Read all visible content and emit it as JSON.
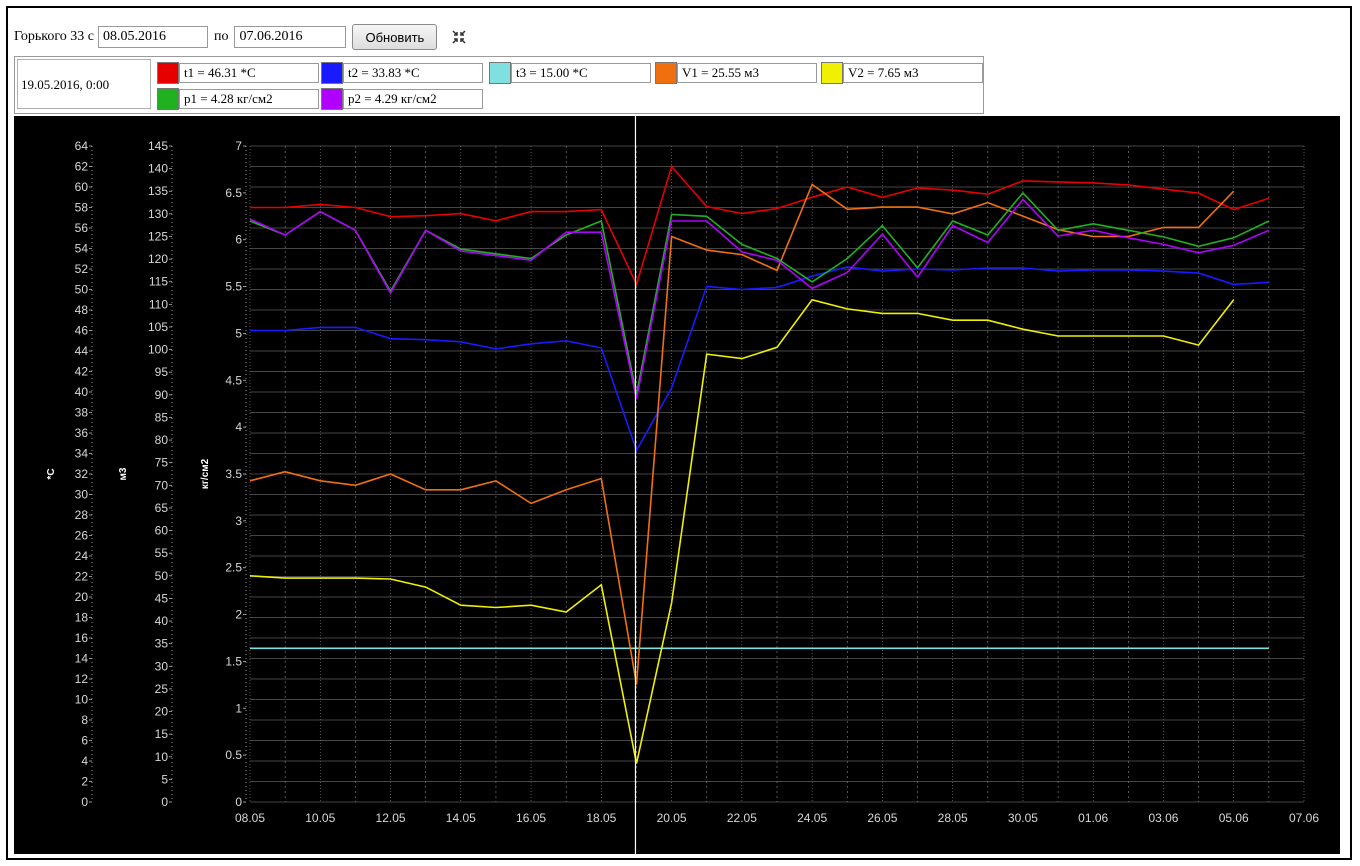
{
  "toolbar": {
    "object_label": "Горького 33 с",
    "date_from": "08.05.2016",
    "to_label": "по",
    "date_to": "07.06.2016",
    "refresh_label": "Обновить"
  },
  "legend": {
    "cursor_time": "19.05.2016, 0:00",
    "items": [
      {
        "label": "t1 = 46.31 *C",
        "color": "#e60000"
      },
      {
        "label": "t2 = 33.83 *C",
        "color": "#1a1aff"
      },
      {
        "label": "t3 = 15.00 *C",
        "color": "#80e0e0"
      },
      {
        "label": "V1 = 25.55 м3",
        "color": "#f07010"
      },
      {
        "label": "V2 = 7.65 м3",
        "color": "#f0f000"
      },
      {
        "label": "p1 = 4.28 кг/см2",
        "color": "#20b020"
      },
      {
        "label": "p2 = 4.29 кг/см2",
        "color": "#b000ff"
      }
    ]
  },
  "chart_data": {
    "type": "line",
    "x_tick_labels": [
      "08.05",
      "10.05",
      "12.05",
      "14.05",
      "16.05",
      "18.05",
      "20.05",
      "22.05",
      "24.05",
      "26.05",
      "28.05",
      "30.05",
      "01.06",
      "03.06",
      "05.06",
      "07.06"
    ],
    "cursor_label": "19.05",
    "axes": {
      "temperature": {
        "label": "*C",
        "min": 0,
        "max": 64,
        "step": 2
      },
      "volume": {
        "label": "м3",
        "min": 0,
        "max": 145,
        "step": 5
      },
      "pressure": {
        "label": "кг/см2",
        "min": 0,
        "max": 7,
        "step": 0.5
      }
    },
    "series": [
      {
        "name": "t1",
        "axis": "temperature",
        "color": "#e60000",
        "values": [
          58,
          58,
          58.3,
          58,
          57.1,
          57.2,
          57.4,
          56.7,
          57.6,
          57.6,
          57.8,
          50.5,
          62,
          58.1,
          57.4,
          57.9,
          59,
          60,
          59,
          59.9,
          59.7,
          59.3,
          60.6,
          60.5,
          60.4,
          60.2,
          59.8,
          59.4,
          57.8,
          58.9
        ]
      },
      {
        "name": "t2",
        "axis": "temperature",
        "color": "#1a1aff",
        "values": [
          46,
          46,
          46.3,
          46.3,
          45.2,
          45.1,
          44.9,
          44.2,
          44.7,
          45,
          44.3,
          34.3,
          40.4,
          50.3,
          50,
          50.2,
          51.3,
          52.2,
          51.8,
          52,
          51.9,
          52.1,
          52.1,
          51.8,
          51.9,
          51.9,
          51.8,
          51.6,
          50.5,
          50.7
        ]
      },
      {
        "name": "t3",
        "axis": "temperature",
        "color": "#80e0e0",
        "values": [
          15,
          15,
          15,
          15,
          15,
          15,
          15,
          15,
          15,
          15,
          15,
          15,
          15,
          15,
          15,
          15,
          15,
          15,
          15,
          15,
          15,
          15,
          15,
          15,
          15,
          15,
          15,
          15,
          15,
          15
        ]
      },
      {
        "name": "V1",
        "axis": "volume",
        "color": "#f07010",
        "values": [
          71,
          73,
          71,
          70,
          72.5,
          69,
          69,
          71,
          66,
          69,
          71.5,
          26,
          125,
          122,
          121,
          117.5,
          136.5,
          131,
          131.5,
          131.5,
          130,
          132.5,
          129.5,
          126.5,
          125,
          125,
          127,
          127,
          135
        ]
      },
      {
        "name": "V2",
        "axis": "volume",
        "color": "#f0f000",
        "values": [
          50,
          49.5,
          49.5,
          49.5,
          49.3,
          47.5,
          43.5,
          43,
          43.5,
          42,
          48,
          8.5,
          44,
          99,
          98,
          100.5,
          111,
          109,
          108,
          108,
          106.5,
          106.5,
          104.5,
          103,
          103,
          103,
          103,
          101,
          111
        ]
      },
      {
        "name": "p1",
        "axis": "pressure",
        "color": "#20b020",
        "values": [
          6.2,
          6.05,
          6.3,
          6.1,
          5.45,
          6.1,
          5.9,
          5.85,
          5.8,
          6.05,
          6.2,
          4.35,
          6.27,
          6.25,
          5.95,
          5.8,
          5.55,
          5.8,
          6.15,
          5.7,
          6.2,
          6.05,
          6.5,
          6.1,
          6.17,
          6.1,
          6.03,
          5.93,
          6.02,
          6.2
        ]
      },
      {
        "name": "p2",
        "axis": "pressure",
        "color": "#b000ff",
        "values": [
          6.22,
          6.05,
          6.3,
          6.1,
          5.43,
          6.1,
          5.88,
          5.83,
          5.78,
          6.08,
          6.08,
          4.3,
          6.2,
          6.2,
          5.87,
          5.78,
          5.48,
          5.65,
          6.06,
          5.6,
          6.15,
          5.97,
          6.43,
          6.04,
          6.1,
          6.02,
          5.95,
          5.86,
          5.94,
          6.1
        ]
      }
    ]
  }
}
